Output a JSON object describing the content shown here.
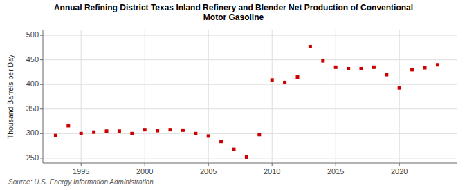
{
  "chart_data": {
    "type": "scatter",
    "title": "Annual Refining District Texas Inland Refinery and Blender Net Production of Conventional\nMotor Gasoline",
    "ylabel": "Thousand Barrels per Day",
    "annotations": [
      "Source: U.S. Energy Information Administration"
    ],
    "x": [
      1993,
      1994,
      1995,
      1996,
      1997,
      1998,
      1999,
      2000,
      2001,
      2002,
      2003,
      2004,
      2005,
      2006,
      2007,
      2008,
      2009,
      2010,
      2011,
      2012,
      2013,
      2014,
      2015,
      2016,
      2017,
      2018,
      2019,
      2020,
      2021,
      2022,
      2023
    ],
    "values": [
      296,
      316,
      300,
      303,
      305,
      305,
      300,
      308,
      306,
      308,
      307,
      300,
      295,
      284,
      268,
      252,
      298,
      409,
      404,
      415,
      477,
      448,
      435,
      432,
      432,
      435,
      420,
      393,
      430,
      434,
      440
    ],
    "color": "#cc0000",
    "marker": "square",
    "xlim": [
      1992.0,
      2024.5
    ],
    "xticks": [
      1995,
      2000,
      2005,
      2010,
      2015,
      2020
    ],
    "ylim": [
      240,
      510
    ],
    "yticks": [
      250,
      300,
      350,
      400,
      450,
      500
    ],
    "grid": true
  }
}
